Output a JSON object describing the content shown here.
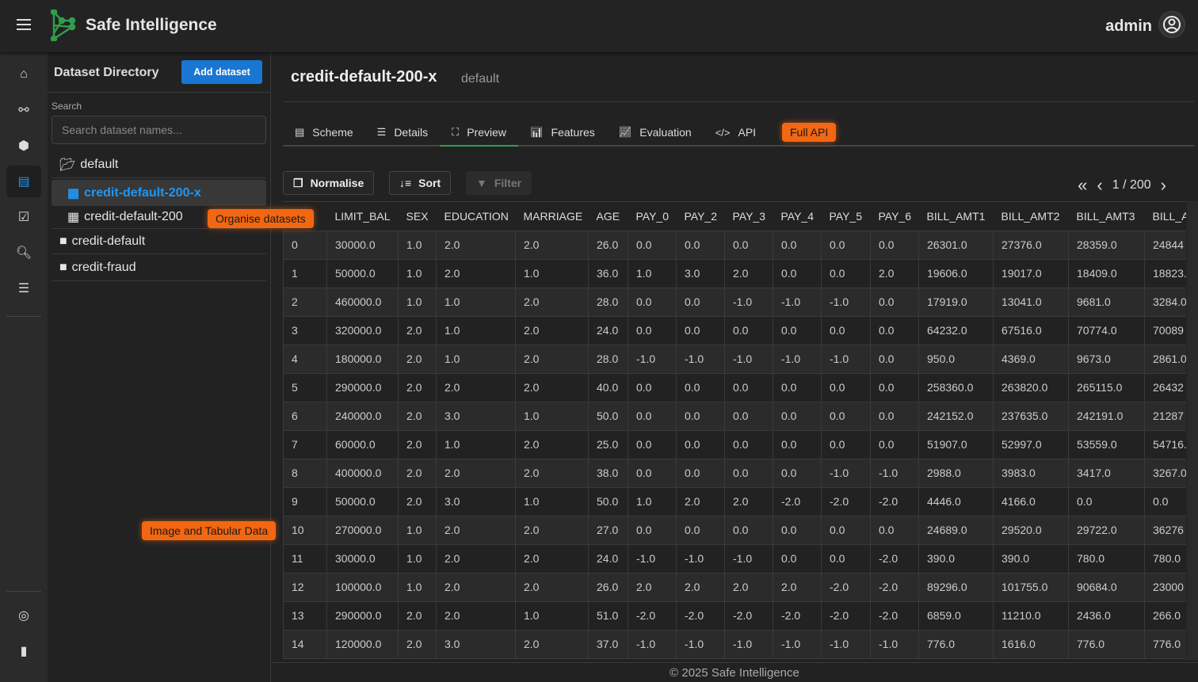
{
  "app": {
    "title": "Safe Intelligence",
    "user": "admin",
    "accent": "#1976d2",
    "brand_green": "#2e9e4a",
    "highlight": "#f26711"
  },
  "rail": {
    "items": [
      {
        "name": "home",
        "icon": "home-icon"
      },
      {
        "name": "flow",
        "icon": "network-icon"
      },
      {
        "name": "models",
        "icon": "cubes-icon"
      },
      {
        "name": "datasets",
        "icon": "table-icon",
        "active": true
      },
      {
        "name": "tasks",
        "icon": "check-square-icon"
      },
      {
        "name": "search",
        "icon": "zoom-icon"
      },
      {
        "name": "servers",
        "icon": "server-icon"
      },
      {
        "name": "fingerprint",
        "icon": "fingerprint-icon"
      },
      {
        "name": "docs",
        "icon": "book-icon"
      }
    ]
  },
  "panel": {
    "title": "Dataset Directory",
    "add_label": "Add dataset",
    "search_label": "Search",
    "search_placeholder": "Search dataset names...",
    "tree": [
      {
        "label": "default",
        "type": "folder-open"
      },
      {
        "label": "credit-default-200-x",
        "type": "dataset",
        "selected": true
      },
      {
        "label": "credit-default-200",
        "type": "dataset"
      },
      {
        "label": "credit-default",
        "type": "folder"
      },
      {
        "label": "credit-fraud",
        "type": "folder"
      }
    ]
  },
  "tooltips": {
    "organise": "Organise datasets",
    "image": "Image and Tabular Data",
    "fullapi": "Full API"
  },
  "main": {
    "title": "credit-default-200-x",
    "subtitle": "default",
    "tabs": [
      {
        "label": "Scheme",
        "icon": "table-icon"
      },
      {
        "label": "Details",
        "icon": "list-icon"
      },
      {
        "label": "Preview",
        "icon": "expand-icon",
        "active": true
      },
      {
        "label": "Features",
        "icon": "bar-chart-icon"
      },
      {
        "label": "Evaluation",
        "icon": "line-chart-icon"
      },
      {
        "label": "API",
        "icon": "code-icon"
      }
    ],
    "buttons": {
      "normalise": "Normalise",
      "sort": "Sort",
      "filter": "Filter"
    },
    "pager": {
      "text": "1 / 200",
      "page": 1,
      "total": 200
    }
  },
  "table": {
    "columns": [
      "",
      "LIMIT_BAL",
      "SEX",
      "EDUCATION",
      "MARRIAGE",
      "AGE",
      "PAY_0",
      "PAY_2",
      "PAY_3",
      "PAY_4",
      "PAY_5",
      "PAY_6",
      "BILL_AMT1",
      "BILL_AMT2",
      "BILL_AMT3",
      "BILL_A"
    ],
    "rows": [
      [
        "0",
        "30000.0",
        "1.0",
        "2.0",
        "2.0",
        "26.0",
        "0.0",
        "0.0",
        "0.0",
        "0.0",
        "0.0",
        "0.0",
        "26301.0",
        "27376.0",
        "28359.0",
        "24844"
      ],
      [
        "1",
        "50000.0",
        "1.0",
        "2.0",
        "1.0",
        "36.0",
        "1.0",
        "3.0",
        "2.0",
        "0.0",
        "0.0",
        "2.0",
        "19606.0",
        "19017.0",
        "18409.0",
        "18823."
      ],
      [
        "2",
        "460000.0",
        "1.0",
        "1.0",
        "2.0",
        "28.0",
        "0.0",
        "0.0",
        "-1.0",
        "-1.0",
        "-1.0",
        "0.0",
        "17919.0",
        "13041.0",
        "9681.0",
        "3284.0"
      ],
      [
        "3",
        "320000.0",
        "2.0",
        "1.0",
        "2.0",
        "24.0",
        "0.0",
        "0.0",
        "0.0",
        "0.0",
        "0.0",
        "0.0",
        "64232.0",
        "67516.0",
        "70774.0",
        "70089"
      ],
      [
        "4",
        "180000.0",
        "2.0",
        "1.0",
        "2.0",
        "28.0",
        "-1.0",
        "-1.0",
        "-1.0",
        "-1.0",
        "-1.0",
        "0.0",
        "950.0",
        "4369.0",
        "9673.0",
        "2861.0"
      ],
      [
        "5",
        "290000.0",
        "2.0",
        "2.0",
        "2.0",
        "40.0",
        "0.0",
        "0.0",
        "0.0",
        "0.0",
        "0.0",
        "0.0",
        "258360.0",
        "263820.0",
        "265115.0",
        "26432"
      ],
      [
        "6",
        "240000.0",
        "2.0",
        "3.0",
        "1.0",
        "50.0",
        "0.0",
        "0.0",
        "0.0",
        "0.0",
        "0.0",
        "0.0",
        "242152.0",
        "237635.0",
        "242191.0",
        "21287"
      ],
      [
        "7",
        "60000.0",
        "2.0",
        "1.0",
        "2.0",
        "25.0",
        "0.0",
        "0.0",
        "0.0",
        "0.0",
        "0.0",
        "0.0",
        "51907.0",
        "52997.0",
        "53559.0",
        "54716."
      ],
      [
        "8",
        "400000.0",
        "2.0",
        "2.0",
        "2.0",
        "38.0",
        "0.0",
        "0.0",
        "0.0",
        "0.0",
        "-1.0",
        "-1.0",
        "2988.0",
        "3983.0",
        "3417.0",
        "3267.0"
      ],
      [
        "9",
        "50000.0",
        "2.0",
        "3.0",
        "1.0",
        "50.0",
        "1.0",
        "2.0",
        "2.0",
        "-2.0",
        "-2.0",
        "-2.0",
        "4446.0",
        "4166.0",
        "0.0",
        "0.0"
      ],
      [
        "10",
        "270000.0",
        "1.0",
        "2.0",
        "2.0",
        "27.0",
        "0.0",
        "0.0",
        "0.0",
        "0.0",
        "0.0",
        "0.0",
        "24689.0",
        "29520.0",
        "29722.0",
        "36276"
      ],
      [
        "11",
        "30000.0",
        "1.0",
        "2.0",
        "2.0",
        "24.0",
        "-1.0",
        "-1.0",
        "-1.0",
        "0.0",
        "0.0",
        "-2.0",
        "390.0",
        "390.0",
        "780.0",
        "780.0"
      ],
      [
        "12",
        "100000.0",
        "1.0",
        "2.0",
        "2.0",
        "26.0",
        "2.0",
        "2.0",
        "2.0",
        "2.0",
        "-2.0",
        "-2.0",
        "89296.0",
        "101755.0",
        "90684.0",
        "23000"
      ],
      [
        "13",
        "290000.0",
        "2.0",
        "2.0",
        "1.0",
        "51.0",
        "-2.0",
        "-2.0",
        "-2.0",
        "-2.0",
        "-2.0",
        "-2.0",
        "6859.0",
        "11210.0",
        "2436.0",
        "266.0"
      ],
      [
        "14",
        "120000.0",
        "2.0",
        "3.0",
        "2.0",
        "37.0",
        "-1.0",
        "-1.0",
        "-1.0",
        "-1.0",
        "-1.0",
        "-1.0",
        "776.0",
        "1616.0",
        "776.0",
        "776.0"
      ]
    ]
  },
  "footer": "© 2025 Safe Intelligence"
}
